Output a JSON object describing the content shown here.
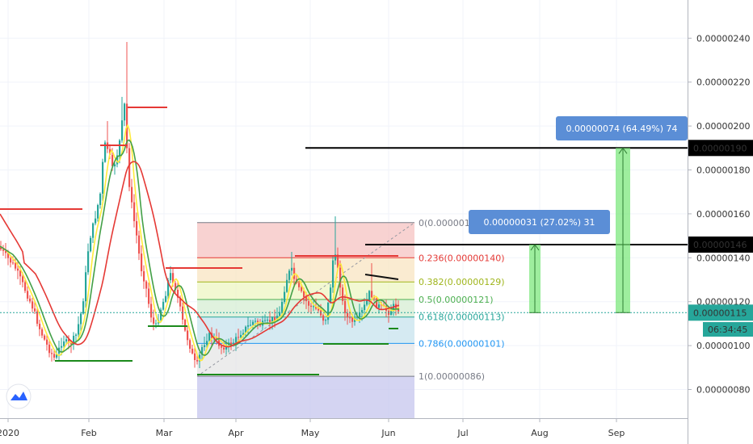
{
  "chart_data": {
    "type": "candlestick",
    "symbol_timeframe": "1D",
    "x_tick_labels": [
      "2020",
      "Feb",
      "Mar",
      "Apr",
      "May",
      "Jun",
      "Jul",
      "Aug",
      "Sep"
    ],
    "y_tick_labels": [
      "0.00000080",
      "0.00000100",
      "0.00000120",
      "0.00000140",
      "0.00000160",
      "0.00000180",
      "0.00000200",
      "0.00000220",
      "0.00000240"
    ],
    "ylim": [
      6.6e-07,
      2.5e-06
    ],
    "grid": true,
    "fib_levels": [
      {
        "label": "0(0.00000156)",
        "value": 1.56e-06,
        "color": "#787b86"
      },
      {
        "label": "0.236(0.00000140)",
        "value": 1.4e-06,
        "color": "#e53935"
      },
      {
        "label": "0.382(0.00000129)",
        "value": 1.29e-06,
        "color": "#9fb51b"
      },
      {
        "label": "0.5(0.00000121)",
        "value": 1.21e-06,
        "color": "#4caf50"
      },
      {
        "label": "0.618(0.00000113)",
        "value": 1.13e-06,
        "color": "#26a69a"
      },
      {
        "label": "0.786(0.00000101)",
        "value": 1.01e-06,
        "color": "#2196f3"
      },
      {
        "label": "1(0.00000086)",
        "value": 8.6e-07,
        "color": "#787b86"
      }
    ],
    "price_labels": {
      "target_high": "0.00000190",
      "target_mid": "0.00000146",
      "current": "0.00000115",
      "countdown": "06:34:45"
    },
    "projections": [
      {
        "label": "0.00000031 (27.02%) 31",
        "from": 1.15e-06,
        "to": 1.46e-06
      },
      {
        "label": "0.00000074 (64.49%) 74",
        "from": 1.15e-06,
        "to": 1.9e-06
      }
    ],
    "colors": {
      "up": "#26a69a",
      "down": "#ef5350",
      "ema_fast": "#ffeb3b",
      "ema_mid": "#43a047",
      "ema_slow": "#e53935",
      "current_price": "#26a69a",
      "projection_box": "#5b8ed6",
      "projection_arrow": "#7ee87e"
    }
  }
}
